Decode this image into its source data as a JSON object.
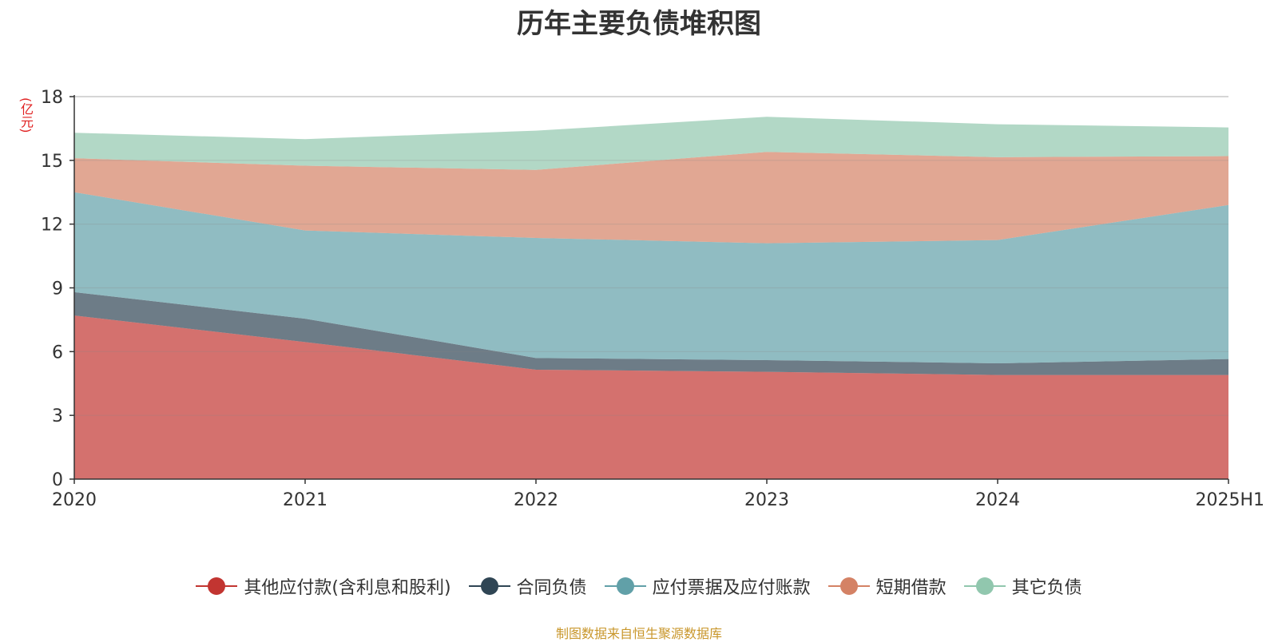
{
  "chart_data": {
    "type": "area",
    "stacked": true,
    "title": "历年主要负债堆积图",
    "ylabel": "(亿元)",
    "xlabel": "",
    "categories": [
      "2020",
      "2021",
      "2022",
      "2023",
      "2024",
      "2025H1"
    ],
    "ylim": [
      0,
      18
    ],
    "yticks": [
      0,
      3,
      6,
      9,
      12,
      15,
      18
    ],
    "grid": true,
    "legend_position": "bottom",
    "series": [
      {
        "name": "其他应付款(含利息和股利)",
        "color": "#c23531",
        "values": [
          7.7,
          6.45,
          5.15,
          5.05,
          4.9,
          4.9
        ]
      },
      {
        "name": "合同负债",
        "color": "#2f4554",
        "values": [
          1.1,
          1.1,
          0.55,
          0.55,
          0.55,
          0.75
        ]
      },
      {
        "name": "应付票据及应付账款",
        "color": "#61a0a8",
        "values": [
          4.7,
          4.15,
          5.65,
          5.5,
          5.8,
          7.25
        ]
      },
      {
        "name": "短期借款",
        "color": "#d48265",
        "values": [
          1.6,
          3.05,
          3.2,
          4.3,
          3.9,
          2.3
        ]
      },
      {
        "name": "其它负债",
        "color": "#91c7ae",
        "values": [
          1.2,
          1.25,
          1.85,
          1.65,
          1.55,
          1.35
        ]
      }
    ]
  },
  "footer": {
    "source": "制图数据来自恒生聚源数据库"
  }
}
